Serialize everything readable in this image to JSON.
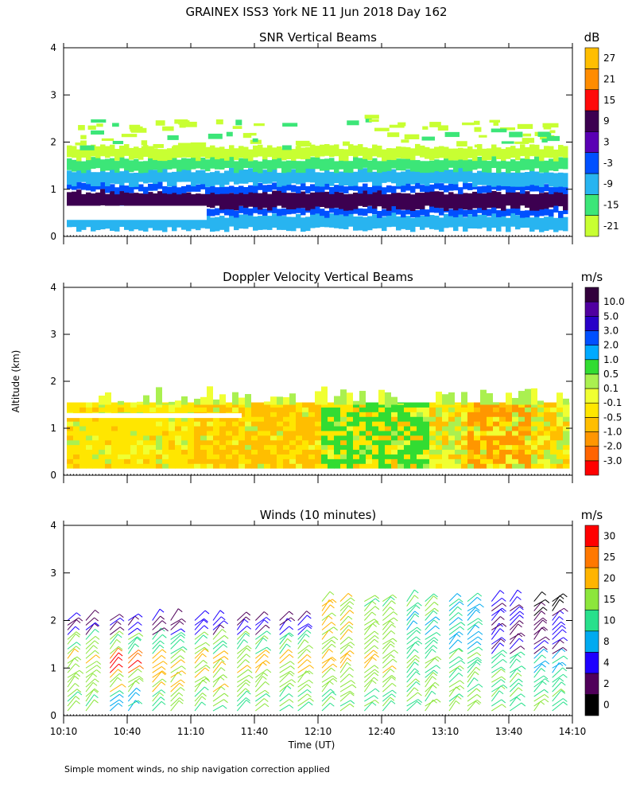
{
  "title": "GRAINEX ISS3 York NE  11 Jun 2018 Day 162",
  "footnote": "Simple moment winds, no ship navigation correction applied",
  "chart_data": [
    {
      "type": "heatmap",
      "title": "SNR Vertical Beams",
      "ylabel": "Altitude (km)",
      "xlabel": "Time (UT)",
      "xlim": [
        "10:10",
        "14:10"
      ],
      "ylim": [
        0,
        4
      ],
      "yticks": [
        "0",
        "1",
        "2",
        "3",
        "4"
      ],
      "colorbar": {
        "unit": "dB",
        "levels": [
          "-21",
          "-15",
          "-9",
          "-3",
          "3",
          "9",
          "15",
          "21",
          "27"
        ],
        "colors": [
          "#c8ff32",
          "#3ce678",
          "#28b4f0",
          "#0050ff",
          "#5a00b4",
          "#3c0050",
          "#ff0a0a",
          "#ff8c00",
          "#ffbe00"
        ]
      },
      "layers": [
        {
          "altitude_bottom_km": 0.15,
          "altitude_top_km": 0.45,
          "snr_db": -9
        },
        {
          "altitude_bottom_km": 0.45,
          "altitude_top_km": 0.6,
          "snr_db": -3
        },
        {
          "altitude_bottom_km": 0.6,
          "altitude_top_km": 0.95,
          "snr_db": 9
        },
        {
          "altitude_bottom_km": 0.95,
          "altitude_top_km": 1.1,
          "snr_db": -3
        },
        {
          "altitude_bottom_km": 1.1,
          "altitude_top_km": 1.4,
          "snr_db": -9
        },
        {
          "altitude_bottom_km": 1.4,
          "altitude_top_km": 1.65,
          "snr_db": -15
        },
        {
          "altitude_bottom_km": 1.65,
          "altitude_top_km": 1.9,
          "snr_db": -21
        }
      ]
    },
    {
      "type": "heatmap",
      "title": "Doppler Velocity Vertical Beams",
      "ylim": [
        0,
        4
      ],
      "yticks": [
        "0",
        "1",
        "2",
        "3",
        "4"
      ],
      "colorbar": {
        "unit": "m/s",
        "levels": [
          "-3.0",
          "-2.0",
          "-1.0",
          "-0.5",
          "-0.1",
          "0.1",
          "0.5",
          "1.0",
          "2.0",
          "3.0",
          "5.0",
          "10.0"
        ],
        "colors": [
          "#ff0000",
          "#ff6400",
          "#ff9600",
          "#ffbe00",
          "#ffe600",
          "#f0ff32",
          "#aaf050",
          "#32dc32",
          "#00aaff",
          "#0050ff",
          "#2800c8",
          "#5000a0",
          "#32003c"
        ]
      },
      "regions": [
        {
          "from": "10:10",
          "to": "12:40",
          "altitude_top_km": 1.5,
          "velocity_ms": -0.5
        },
        {
          "from": "11:10",
          "to": "12:10",
          "altitude_top_km": 1.5,
          "velocity_ms": -1.0
        },
        {
          "from": "12:10",
          "to": "13:00",
          "altitude_top_km": 1.5,
          "velocity_ms": 0.5
        },
        {
          "from": "13:20",
          "to": "13:50",
          "altitude_top_km": 1.5,
          "velocity_ms": -2.0
        }
      ]
    },
    {
      "type": "wind_barbs",
      "title": "Winds (10 minutes)",
      "xlabel": "Time (UT)",
      "xticks": [
        "10:10",
        "10:40",
        "11:10",
        "11:40",
        "12:10",
        "12:40",
        "13:10",
        "13:40",
        "14:10"
      ],
      "ylim": [
        0,
        4
      ],
      "yticks": [
        "0",
        "1",
        "2",
        "3",
        "4"
      ],
      "colorbar": {
        "unit": "m/s",
        "levels": [
          "0",
          "2",
          "4",
          "8",
          "10",
          "15",
          "20",
          "25",
          "30"
        ],
        "colors": [
          "#000000",
          "#50005a",
          "#1e00ff",
          "#00aaf0",
          "#28e08c",
          "#8ce63c",
          "#ffb400",
          "#ff7800",
          "#ff0000"
        ]
      },
      "profiles": [
        {
          "time": "10:10",
          "layers": [
            [
              0.1,
              15
            ],
            [
              0.5,
              18
            ],
            [
              0.9,
              20
            ],
            [
              1.3,
              15
            ],
            [
              1.7,
              4
            ]
          ]
        },
        {
          "time": "10:30",
          "layers": [
            [
              0.1,
              10
            ],
            [
              0.5,
              20
            ],
            [
              0.9,
              30
            ],
            [
              1.3,
              15
            ],
            [
              1.7,
              4
            ]
          ]
        },
        {
          "time": "10:50",
          "layers": [
            [
              0.1,
              15
            ],
            [
              0.5,
              20
            ],
            [
              0.9,
              20
            ],
            [
              1.3,
              12
            ],
            [
              1.7,
              4
            ]
          ]
        },
        {
          "time": "11:10",
          "layers": [
            [
              0.1,
              15
            ],
            [
              0.5,
              20
            ],
            [
              0.9,
              20
            ],
            [
              1.3,
              15
            ],
            [
              1.7,
              4
            ]
          ]
        },
        {
          "time": "11:30",
          "layers": [
            [
              0.1,
              15
            ],
            [
              0.5,
              18
            ],
            [
              0.9,
              20
            ],
            [
              1.3,
              15
            ],
            [
              1.7,
              4
            ]
          ]
        },
        {
          "time": "11:50",
          "layers": [
            [
              0.1,
              15
            ],
            [
              0.5,
              18
            ],
            [
              0.9,
              20
            ],
            [
              1.3,
              15
            ],
            [
              1.7,
              4
            ]
          ]
        },
        {
          "time": "12:10",
          "layers": [
            [
              0.1,
              15
            ],
            [
              0.5,
              18
            ],
            [
              0.9,
              20
            ],
            [
              1.3,
              20
            ],
            [
              1.7,
              20
            ],
            [
              2.1,
              20
            ]
          ]
        },
        {
          "time": "12:30",
          "layers": [
            [
              0.1,
              15
            ],
            [
              0.5,
              18
            ],
            [
              0.9,
              20
            ],
            [
              1.3,
              18
            ],
            [
              1.7,
              18
            ],
            [
              2.1,
              15
            ]
          ]
        },
        {
          "time": "12:50",
          "layers": [
            [
              0.1,
              15
            ],
            [
              0.5,
              15
            ],
            [
              0.9,
              15
            ],
            [
              1.3,
              12
            ],
            [
              1.7,
              10
            ],
            [
              2.1,
              15
            ]
          ]
        },
        {
          "time": "13:10",
          "layers": [
            [
              0.1,
              15
            ],
            [
              0.5,
              15
            ],
            [
              0.9,
              15
            ],
            [
              1.3,
              10
            ],
            [
              1.7,
              10
            ],
            [
              2.1,
              10
            ]
          ]
        },
        {
          "time": "13:30",
          "layers": [
            [
              0.1,
              15
            ],
            [
              0.5,
              15
            ],
            [
              0.9,
              12
            ],
            [
              1.3,
              4
            ],
            [
              1.7,
              4
            ],
            [
              2.1,
              4
            ]
          ]
        },
        {
          "time": "13:50",
          "layers": [
            [
              0.1,
              15
            ],
            [
              0.5,
              12
            ],
            [
              0.9,
              10
            ],
            [
              1.3,
              4
            ],
            [
              1.7,
              4
            ],
            [
              2.1,
              2
            ]
          ]
        }
      ]
    }
  ]
}
